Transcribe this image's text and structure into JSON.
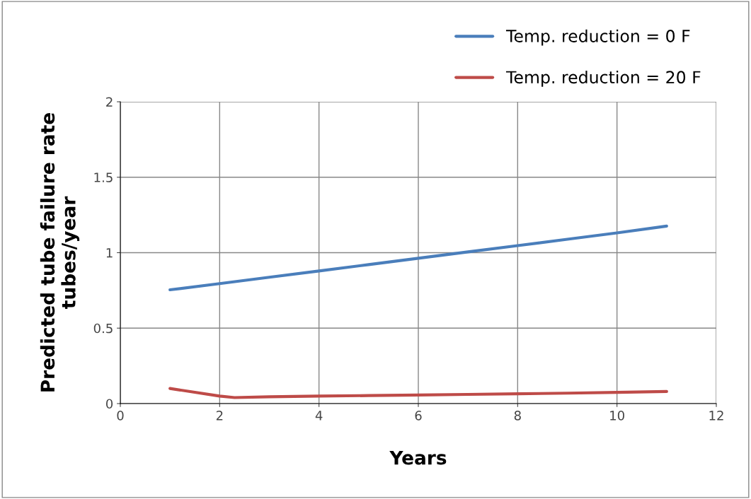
{
  "chart_data": {
    "type": "line",
    "xlabel": "Years",
    "ylabel": "Predicted tube failure rate\ntubes/year",
    "series": [
      {
        "name": "Temp. reduction = 0 F",
        "color": "#4a7ebb",
        "x": [
          1,
          2,
          3,
          4,
          5,
          6,
          7,
          8,
          9,
          10,
          11
        ],
        "values": [
          0.754,
          0.795,
          0.837,
          0.879,
          0.921,
          0.963,
          1.005,
          1.047,
          1.089,
          1.131,
          1.176
        ]
      },
      {
        "name": "Temp. reduction = 20 F",
        "color": "#be4b48",
        "x": [
          1,
          2,
          2.3,
          3,
          4,
          5,
          6,
          7,
          8,
          9,
          10,
          11
        ],
        "values": [
          0.1,
          0.05,
          0.04,
          0.045,
          0.05,
          0.053,
          0.057,
          0.061,
          0.065,
          0.069,
          0.074,
          0.08
        ]
      }
    ],
    "xlim": [
      0,
      12
    ],
    "xticks": [
      0,
      2,
      4,
      6,
      8,
      10,
      12
    ],
    "ylim": [
      0,
      2
    ],
    "yticks": [
      0,
      0.5,
      1,
      1.5,
      2
    ],
    "grid": true,
    "legend": "top right",
    "marker": "none",
    "line_style": "solid"
  }
}
